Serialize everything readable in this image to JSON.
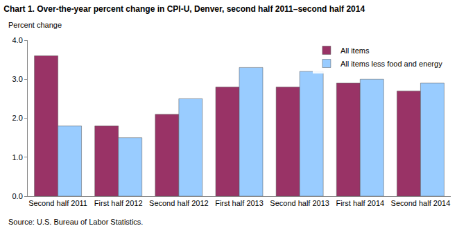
{
  "chart_data": {
    "type": "bar",
    "title": "Chart 1. Over-the-year percent change in CPI-U, Denver, second half 2011–second half 2014",
    "ylabel": "Percent change",
    "annotations": [
      "Source: U.S. Bureau of Labor Statistics."
    ],
    "categories": [
      "Second half 2011",
      "First half 2012",
      "Second half 2012",
      "First half 2013",
      "Second half 2013",
      "First half 2014",
      "Second half 2014"
    ],
    "series": [
      {
        "name": "All items",
        "color": "#993366",
        "values": [
          3.6,
          1.8,
          2.1,
          2.8,
          2.8,
          2.9,
          2.7
        ]
      },
      {
        "name": "All items less food and energy",
        "color": "#99ccff",
        "values": [
          1.8,
          1.5,
          2.5,
          3.3,
          3.2,
          3.0,
          2.9
        ]
      }
    ],
    "ylim": [
      0,
      4
    ],
    "yticks": [
      {
        "value": 0,
        "label": "0.0"
      },
      {
        "value": 1,
        "label": "1.0"
      },
      {
        "value": 2,
        "label": "2.0"
      },
      {
        "value": 3,
        "label": "3.0"
      },
      {
        "value": 4,
        "label": "4.0"
      }
    ],
    "grid": false,
    "legend": "upper right"
  }
}
